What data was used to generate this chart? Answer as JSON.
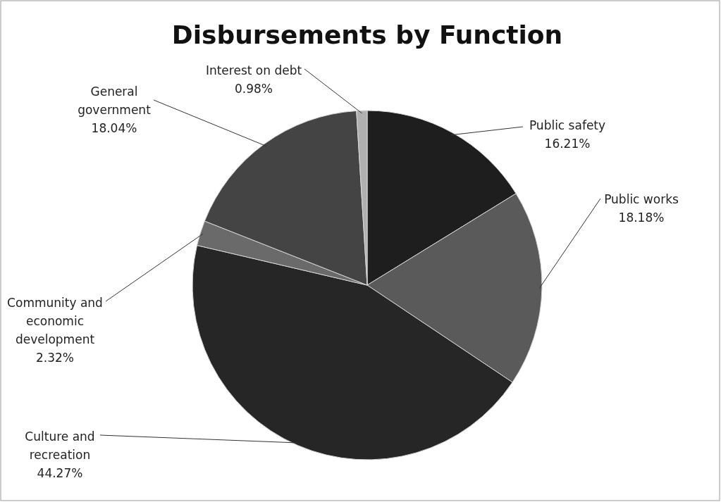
{
  "chart_data": {
    "type": "pie",
    "title": "Disbursements by Function",
    "categories": [
      "Public safety",
      "Public works",
      "Culture and recreation",
      "Community and economic development",
      "General government",
      "Interest on debt"
    ],
    "values": [
      16.21,
      18.18,
      44.27,
      2.32,
      18.04,
      0.98
    ],
    "colors": [
      "#1e1e1e",
      "#5a5a5a",
      "#262626",
      "#6a6a6a",
      "#444444",
      "#b0b0b0"
    ],
    "value_labels": [
      "16.21%",
      "18.18%",
      "44.27%",
      "2.32%",
      "18.04%",
      "0.98%"
    ]
  }
}
